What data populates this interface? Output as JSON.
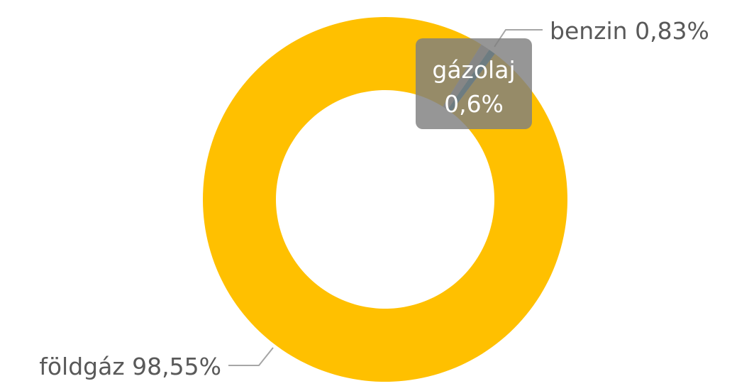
{
  "chart_data": {
    "type": "pie",
    "donut": true,
    "categories": [
      "földgáz",
      "benzin",
      "gázolaj"
    ],
    "values": [
      98.55,
      0.83,
      0.6
    ],
    "value_labels": [
      "98,55%",
      "0,83%",
      "0,6%"
    ],
    "colors": [
      "#FFC000",
      "#A5A5A5",
      "#1F6E8C"
    ]
  }
}
